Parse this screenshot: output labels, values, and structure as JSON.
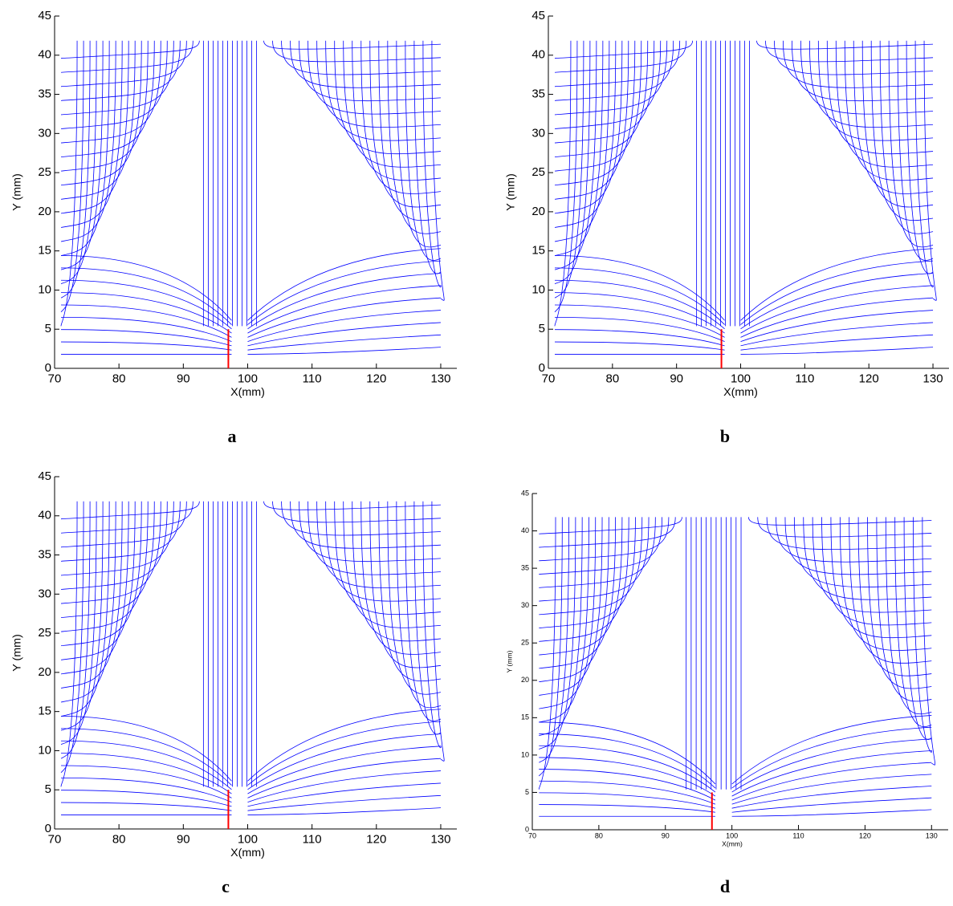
{
  "chart_data": [
    {
      "type": "streamline",
      "panel_label": "a",
      "xlabel": "X(mm)",
      "ylabel": "Y (mm)",
      "xlim": [
        70,
        132.5
      ],
      "ylim": [
        0,
        45
      ],
      "xticks": [
        70,
        80,
        90,
        100,
        110,
        120,
        130
      ],
      "yticks": [
        0,
        5,
        10,
        15,
        20,
        25,
        30,
        35,
        40,
        45
      ],
      "streamline_color": "#0000ff",
      "plate": {
        "x": 97,
        "y": [
          0,
          5
        ],
        "color": "#ff0000"
      }
    },
    {
      "type": "streamline",
      "panel_label": "b",
      "xlabel": "X(mm)",
      "ylabel": "Y (mm)",
      "xlim": [
        70,
        132.5
      ],
      "ylim": [
        0,
        45
      ],
      "xticks": [
        70,
        80,
        90,
        100,
        110,
        120,
        130
      ],
      "yticks": [
        0,
        5,
        10,
        15,
        20,
        25,
        30,
        35,
        40,
        45
      ],
      "streamline_color": "#0000ff",
      "plate": {
        "x": 97,
        "y": [
          0,
          5
        ],
        "color": "#ff0000"
      }
    },
    {
      "type": "streamline",
      "panel_label": "c",
      "xlabel": "X(mm)",
      "ylabel": "Y (mm)",
      "xlim": [
        70,
        132.5
      ],
      "ylim": [
        0,
        45
      ],
      "xticks": [
        70,
        80,
        90,
        100,
        110,
        120,
        130
      ],
      "yticks": [
        0,
        5,
        10,
        15,
        20,
        25,
        30,
        35,
        40,
        45
      ],
      "streamline_color": "#0000ff",
      "plate": {
        "x": 97,
        "y": [
          0,
          5
        ],
        "color": "#ff0000"
      }
    },
    {
      "type": "streamline",
      "panel_label": "d",
      "xlabel": "X(mm)",
      "ylabel": "Y (mm)",
      "xlim": [
        70,
        132.5
      ],
      "ylim": [
        0,
        45
      ],
      "xticks": [
        70,
        80,
        90,
        100,
        110,
        120,
        130
      ],
      "yticks": [
        0,
        5,
        10,
        15,
        20,
        25,
        30,
        35,
        40,
        45
      ],
      "streamline_color": "#0000ff",
      "plate": {
        "x": 97,
        "y": [
          0,
          5
        ],
        "color": "#ff0000"
      }
    }
  ]
}
